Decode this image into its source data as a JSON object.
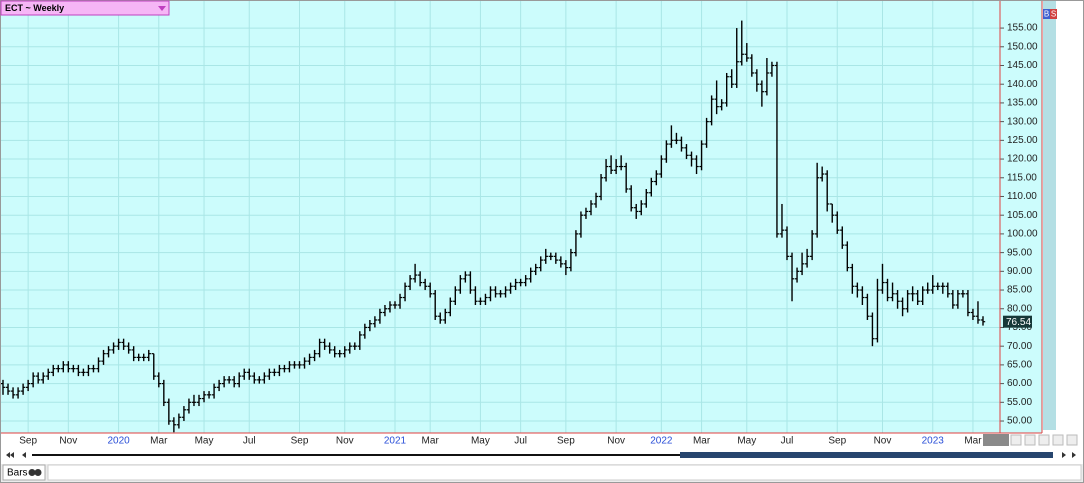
{
  "chart_data": {
    "type": "ohlc",
    "title": "ECT ~ Weekly",
    "color": "#000000",
    "grid": true,
    "categories": [
      null,
      null,
      null,
      null,
      null,
      "Sep",
      null,
      null,
      null,
      null,
      null,
      null,
      null,
      "Nov",
      null,
      null,
      null,
      null,
      null,
      null,
      null,
      null,
      null,
      "2020",
      null,
      null,
      null,
      null,
      null,
      null,
      null,
      "Mar",
      null,
      null,
      null,
      null,
      null,
      null,
      null,
      null,
      "May",
      null,
      null,
      null,
      null,
      null,
      null,
      null,
      null,
      "Jul",
      null,
      null,
      null,
      null,
      null,
      null,
      null,
      null,
      null,
      "Sep",
      null,
      null,
      null,
      null,
      null,
      null,
      null,
      null,
      "Nov",
      null,
      null,
      null,
      null,
      null,
      null,
      null,
      null,
      null,
      "2021",
      null,
      null,
      null,
      null,
      null,
      null,
      "Mar",
      null,
      null,
      null,
      null,
      null,
      null,
      null,
      null,
      null,
      "May",
      null,
      null,
      null,
      null,
      null,
      null,
      null,
      "Jul",
      null,
      null,
      null,
      null,
      null,
      null,
      null,
      null,
      "Sep",
      null,
      null,
      null,
      null,
      null,
      null,
      null,
      null,
      null,
      "Nov",
      null,
      null,
      null,
      null,
      null,
      null,
      null,
      null,
      "2022",
      null,
      null,
      null,
      null,
      null,
      null,
      null,
      "Mar",
      null,
      null,
      null,
      null,
      null,
      null,
      null,
      null,
      "May",
      null,
      null,
      null,
      null,
      null,
      null,
      null,
      "Jul",
      null,
      null,
      null,
      null,
      null,
      null,
      null,
      null,
      null,
      "Sep",
      null,
      null,
      null,
      null,
      null,
      null,
      null,
      null,
      "Nov",
      null,
      null,
      null,
      null,
      null,
      null,
      null,
      null,
      null,
      "2023",
      null,
      null,
      null,
      null,
      null,
      null,
      null,
      "Mar",
      null,
      null
    ],
    "open": [
      60,
      59,
      58,
      57,
      58,
      59,
      60,
      62,
      61,
      62,
      63,
      64,
      64,
      65,
      64,
      64,
      63,
      63,
      64,
      64,
      66,
      68,
      69,
      70,
      71,
      70,
      69,
      67,
      67,
      67,
      68,
      62,
      60,
      55,
      50,
      49,
      51,
      53,
      55,
      55,
      56,
      57,
      57,
      59,
      60,
      61,
      61,
      60,
      62,
      63,
      62,
      61,
      61,
      62,
      63,
      63,
      64,
      64,
      65,
      65,
      65,
      66,
      67,
      68,
      71,
      70,
      69,
      68,
      68,
      69,
      70,
      70,
      73,
      75,
      76,
      77,
      79,
      80,
      81,
      81,
      83,
      86,
      88,
      89,
      87,
      86,
      84,
      78,
      77,
      79,
      82,
      85,
      88,
      89,
      85,
      82,
      82,
      83,
      85,
      84,
      84,
      85,
      86,
      87,
      87,
      88,
      90,
      91,
      93,
      94,
      94,
      93,
      92,
      91,
      95,
      100,
      105,
      106,
      108,
      110,
      115,
      118,
      117,
      118,
      118,
      112,
      107,
      106,
      108,
      111,
      114,
      116,
      120,
      124,
      125,
      125,
      123,
      121,
      120,
      118,
      124,
      130,
      136,
      134,
      135,
      142,
      140,
      146,
      148,
      147,
      143,
      140,
      138,
      143,
      145,
      100,
      101,
      94,
      88,
      90,
      92,
      94,
      100,
      115,
      116,
      108,
      105,
      101,
      97,
      91,
      86,
      85,
      83,
      78,
      72,
      85,
      87,
      83,
      84,
      82,
      80,
      84,
      84,
      82,
      85,
      85,
      86,
      86,
      86,
      84,
      81,
      84,
      84,
      79,
      78,
      77
    ],
    "high": [
      61,
      60,
      59,
      59,
      60,
      61,
      63,
      63,
      63,
      64,
      65,
      65,
      66,
      66,
      65,
      65,
      64,
      65,
      65,
      67,
      69,
      70,
      71,
      72,
      72,
      71,
      70,
      68,
      68,
      69,
      68,
      63,
      61,
      56,
      51,
      52,
      54,
      56,
      57,
      57,
      58,
      58,
      60,
      61,
      62,
      62,
      62,
      63,
      64,
      64,
      63,
      62,
      63,
      64,
      64,
      65,
      65,
      66,
      66,
      66,
      67,
      68,
      69,
      72,
      72,
      71,
      70,
      69,
      70,
      71,
      71,
      74,
      76,
      77,
      78,
      80,
      81,
      82,
      82,
      84,
      87,
      89,
      92,
      90,
      88,
      87,
      85,
      79,
      80,
      83,
      86,
      89,
      90,
      90,
      86,
      83,
      84,
      86,
      86,
      85,
      86,
      87,
      88,
      88,
      89,
      91,
      92,
      94,
      96,
      95,
      95,
      94,
      93,
      96,
      101,
      106,
      107,
      109,
      111,
      116,
      120,
      121,
      120,
      121,
      119,
      113,
      108,
      109,
      112,
      115,
      117,
      121,
      125,
      129,
      127,
      126,
      124,
      122,
      121,
      125,
      131,
      137,
      141,
      136,
      143,
      144,
      155,
      157,
      151,
      148,
      144,
      141,
      147,
      146,
      146,
      108,
      102,
      95,
      91,
      95,
      96,
      101,
      119,
      118,
      117,
      108,
      106,
      102,
      98,
      92,
      87,
      86,
      84,
      79,
      88,
      92,
      88,
      87,
      85,
      83,
      85,
      86,
      85,
      86,
      87,
      89,
      87,
      87,
      87,
      85,
      85,
      85,
      85,
      80,
      82,
      78
    ],
    "low": [
      57,
      57,
      56,
      56,
      57,
      58,
      59,
      60,
      60,
      61,
      62,
      63,
      63,
      63,
      63,
      62,
      62,
      62,
      63,
      63,
      65,
      67,
      68,
      69,
      69,
      68,
      66,
      66,
      66,
      66,
      61,
      59,
      54,
      49,
      47,
      48,
      50,
      52,
      54,
      54,
      55,
      56,
      56,
      58,
      59,
      60,
      59,
      59,
      61,
      61,
      60,
      60,
      60,
      61,
      62,
      62,
      63,
      63,
      64,
      64,
      64,
      65,
      66,
      67,
      69,
      68,
      67,
      67,
      67,
      68,
      69,
      69,
      72,
      74,
      75,
      76,
      78,
      79,
      80,
      80,
      82,
      85,
      87,
      86,
      85,
      83,
      77,
      76,
      76,
      78,
      81,
      84,
      87,
      84,
      81,
      81,
      81,
      82,
      83,
      83,
      83,
      84,
      85,
      86,
      86,
      87,
      89,
      90,
      92,
      93,
      92,
      91,
      89,
      90,
      94,
      99,
      104,
      105,
      107,
      109,
      114,
      116,
      116,
      117,
      111,
      106,
      104,
      105,
      107,
      110,
      113,
      115,
      119,
      123,
      124,
      122,
      120,
      118,
      116,
      117,
      123,
      129,
      132,
      133,
      134,
      139,
      139,
      145,
      146,
      142,
      138,
      134,
      137,
      142,
      99,
      99,
      93,
      82,
      87,
      89,
      91,
      93,
      99,
      114,
      106,
      103,
      100,
      96,
      90,
      84,
      83,
      81,
      77,
      70,
      71,
      84,
      82,
      82,
      80,
      78,
      79,
      82,
      81,
      81,
      84,
      84,
      85,
      84,
      83,
      80,
      80,
      83,
      78,
      77,
      76,
      75.5
    ],
    "close": [
      59,
      58,
      57,
      58,
      59,
      60,
      62,
      61,
      62,
      63,
      64,
      64,
      65,
      64,
      64,
      63,
      63,
      64,
      64,
      66,
      68,
      69,
      70,
      71,
      70,
      69,
      67,
      67,
      67,
      68,
      62,
      60,
      55,
      50,
      49,
      51,
      53,
      55,
      55,
      56,
      57,
      57,
      59,
      60,
      61,
      61,
      60,
      62,
      63,
      62,
      61,
      61,
      62,
      63,
      63,
      64,
      64,
      65,
      65,
      65,
      66,
      67,
      68,
      71,
      70,
      69,
      68,
      68,
      69,
      70,
      70,
      73,
      75,
      76,
      77,
      79,
      80,
      81,
      81,
      83,
      86,
      88,
      89,
      87,
      86,
      84,
      78,
      77,
      79,
      82,
      85,
      88,
      89,
      85,
      82,
      82,
      83,
      85,
      84,
      84,
      85,
      86,
      87,
      87,
      88,
      90,
      91,
      93,
      94,
      94,
      93,
      92,
      91,
      95,
      100,
      105,
      106,
      108,
      110,
      115,
      118,
      117,
      118,
      118,
      112,
      107,
      106,
      108,
      111,
      114,
      116,
      120,
      124,
      125,
      125,
      123,
      121,
      120,
      118,
      124,
      130,
      136,
      134,
      135,
      142,
      140,
      146,
      148,
      147,
      143,
      140,
      138,
      143,
      145,
      100,
      101,
      94,
      88,
      90,
      92,
      94,
      100,
      115,
      116,
      108,
      105,
      101,
      97,
      91,
      86,
      85,
      83,
      78,
      72,
      85,
      87,
      83,
      84,
      82,
      80,
      84,
      84,
      82,
      85,
      85,
      86,
      86,
      86,
      84,
      81,
      84,
      84,
      79,
      78,
      77,
      76.54
    ],
    "ylim": [
      46.8,
      162.5
    ],
    "yticks": [
      {
        "value": 50,
        "label": "50.00"
      },
      {
        "value": 55,
        "label": "55.00"
      },
      {
        "value": 60,
        "label": "60.00"
      },
      {
        "value": 65,
        "label": "65.00"
      },
      {
        "value": 70,
        "label": "70.00"
      },
      {
        "value": 75,
        "label": "75.00"
      },
      {
        "value": 80,
        "label": "80.00"
      },
      {
        "value": 85,
        "label": "85.00"
      },
      {
        "value": 90,
        "label": "90.00"
      },
      {
        "value": 95,
        "label": "95.00"
      },
      {
        "value": 100,
        "label": "100.00"
      },
      {
        "value": 105,
        "label": "105.00"
      },
      {
        "value": 110,
        "label": "110.00"
      },
      {
        "value": 115,
        "label": "115.00"
      },
      {
        "value": 120,
        "label": "120.00"
      },
      {
        "value": 125,
        "label": "125.00"
      },
      {
        "value": 130,
        "label": "130.00"
      },
      {
        "value": 135,
        "label": "135.00"
      },
      {
        "value": 140,
        "label": "140.00"
      },
      {
        "value": 145,
        "label": "145.00"
      },
      {
        "value": 150,
        "label": "150.00"
      },
      {
        "value": 155,
        "label": "155.00"
      }
    ]
  },
  "ui": {
    "buttons": [
      "B",
      "S"
    ],
    "chart_style": "Bars"
  }
}
